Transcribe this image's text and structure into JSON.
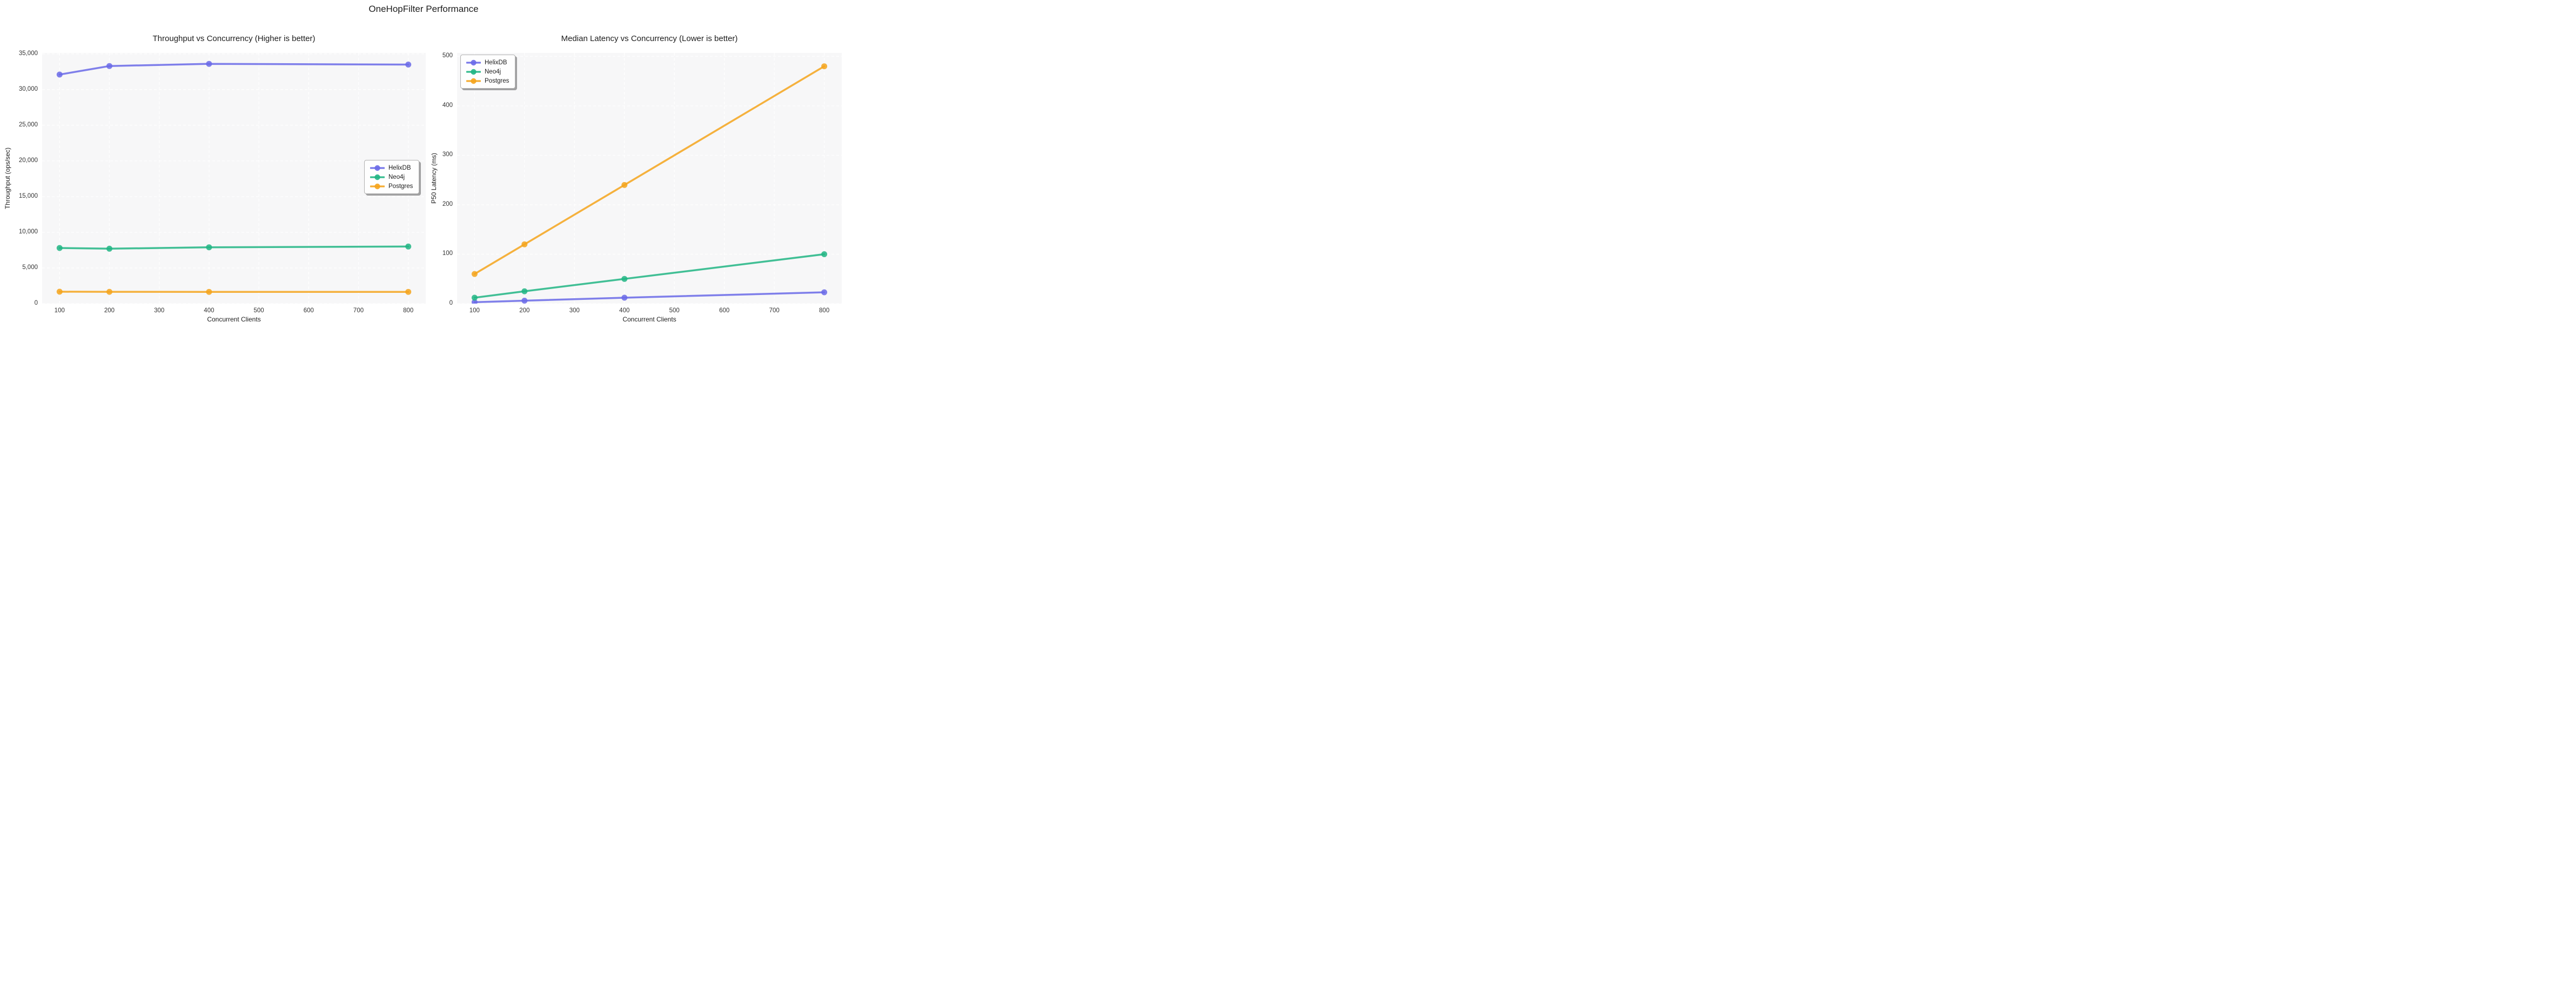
{
  "main_title": "OneHopFilter Performance",
  "colors": {
    "helixdb": "#6a6ae8",
    "neo4j": "#21b584",
    "postgres": "#f5a41c",
    "plot_background": "#f7f7f8",
    "gridline": "#ffffff",
    "title_text": "#1c1c1c",
    "tick_text": "#333333"
  },
  "legend": {
    "entries": [
      "HelixDB",
      "Neo4j",
      "Postgres"
    ]
  },
  "chart_data": [
    {
      "type": "line",
      "title": "Throughput vs Concurrency (Higher is better)",
      "xlabel": "Concurrent Clients",
      "ylabel": "Throughput (ops/sec)",
      "x": [
        100,
        200,
        400,
        800
      ],
      "series": [
        {
          "name": "HelixDB",
          "color_key": "helixdb",
          "values": [
            32100,
            33300,
            33600,
            33500
          ]
        },
        {
          "name": "Neo4j",
          "color_key": "neo4j",
          "values": [
            7800,
            7700,
            7900,
            8000
          ]
        },
        {
          "name": "Postgres",
          "color_key": "postgres",
          "values": [
            1670,
            1660,
            1650,
            1650
          ]
        }
      ],
      "xlim": [
        65,
        835
      ],
      "ylim": [
        0,
        35130
      ],
      "xticks": {
        "values": [
          100,
          200,
          300,
          400,
          500,
          600,
          700,
          800
        ],
        "labels": [
          "100",
          "200",
          "300",
          "400",
          "500",
          "600",
          "700",
          "800"
        ]
      },
      "yticks": {
        "values": [
          0,
          5000,
          10000,
          15000,
          20000,
          25000,
          30000,
          35000
        ],
        "labels": [
          "0",
          "5,000",
          "10,000",
          "15,000",
          "20,000",
          "25,000",
          "30,000",
          "35,000"
        ]
      },
      "grid": true,
      "legend_position": "center-right"
    },
    {
      "type": "line",
      "title": "Median Latency vs Concurrency (Lower is better)",
      "xlabel": "Concurrent Clients",
      "ylabel": "P50 Latency (ms)",
      "x": [
        100,
        200,
        400,
        800
      ],
      "series": [
        {
          "name": "HelixDB",
          "color_key": "helixdb",
          "values": [
            3,
            6,
            12,
            23
          ]
        },
        {
          "name": "Neo4j",
          "color_key": "neo4j",
          "values": [
            12,
            25,
            50,
            100
          ]
        },
        {
          "name": "Postgres",
          "color_key": "postgres",
          "values": [
            60,
            120,
            240,
            480
          ]
        }
      ],
      "xlim": [
        65,
        835
      ],
      "ylim": [
        0,
        507
      ],
      "xticks": {
        "values": [
          100,
          200,
          300,
          400,
          500,
          600,
          700,
          800
        ],
        "labels": [
          "100",
          "200",
          "300",
          "400",
          "500",
          "600",
          "700",
          "800"
        ]
      },
      "yticks": {
        "values": [
          0,
          100,
          200,
          300,
          400,
          500
        ],
        "labels": [
          "0",
          "100",
          "200",
          "300",
          "400",
          "500"
        ]
      },
      "grid": true,
      "legend_position": "upper-left"
    }
  ]
}
